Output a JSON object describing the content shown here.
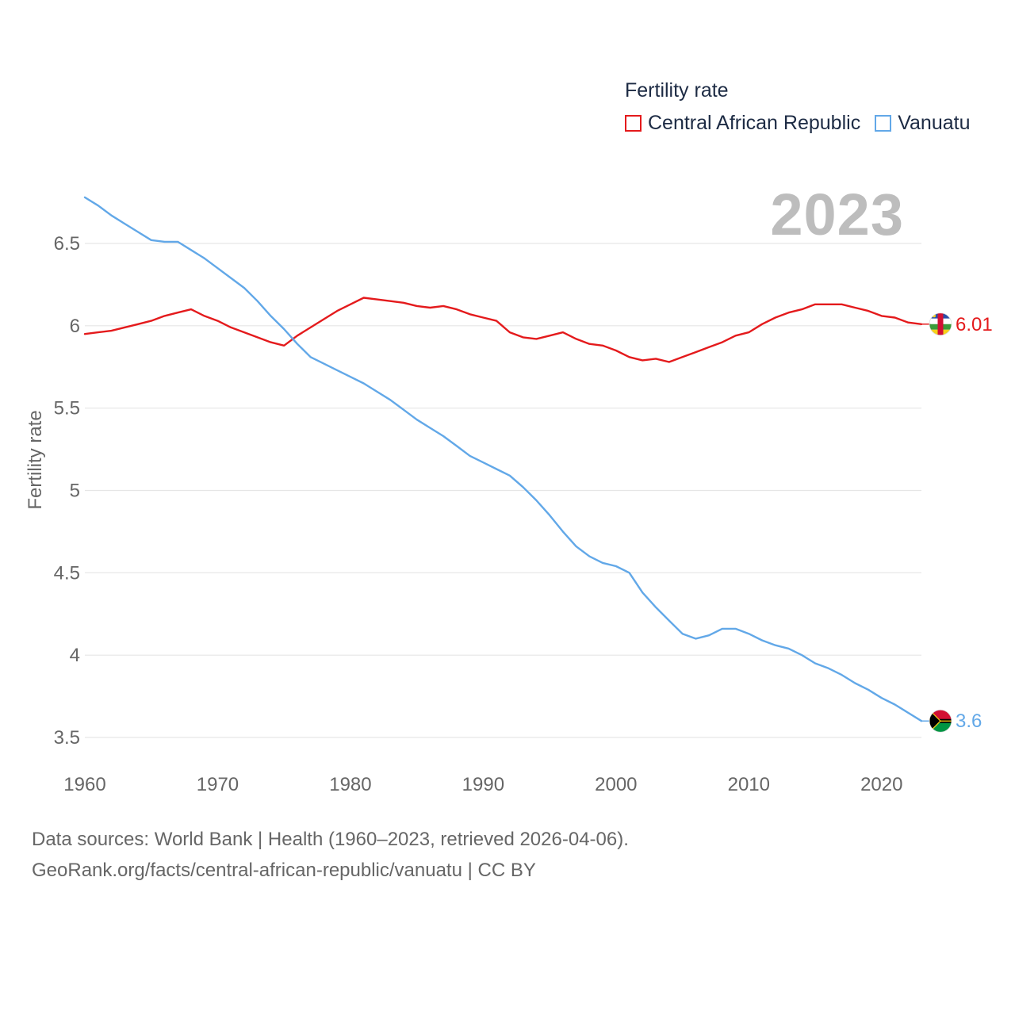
{
  "legend": {
    "title": "Fertility rate",
    "items": [
      {
        "label": "Central African Republic",
        "color": "#e41a1c"
      },
      {
        "label": "Vanuatu",
        "color": "#62a8e8"
      }
    ]
  },
  "year_label": "2023",
  "footer": {
    "line1": "Data sources: World Bank | Health (1960–2023, retrieved 2026-04-06).",
    "line2": "GeoRank.org/facts/central-african-republic/vanuatu | CC BY"
  },
  "chart_data": {
    "type": "line",
    "title": "",
    "xlabel": "",
    "ylabel": "Fertility rate",
    "xlim": [
      1960,
      2023
    ],
    "ylim": [
      3.5,
      6.8
    ],
    "x_ticks": [
      1960,
      1970,
      1980,
      1990,
      2000,
      2010,
      2020
    ],
    "x_tick_labels": [
      "1960",
      "1970",
      "1980",
      "1990",
      "2000",
      "2010",
      "2020"
    ],
    "y_ticks": [
      3.5,
      4,
      4.5,
      5,
      5.5,
      6,
      6.5
    ],
    "y_tick_labels": [
      "3.5",
      "4",
      "4.5",
      "5",
      "5.5",
      "6",
      "6.5"
    ],
    "grid": true,
    "legend_position": "top-right",
    "x": [
      1960,
      1961,
      1962,
      1963,
      1964,
      1965,
      1966,
      1967,
      1968,
      1969,
      1970,
      1971,
      1972,
      1973,
      1974,
      1975,
      1976,
      1977,
      1978,
      1979,
      1980,
      1981,
      1982,
      1983,
      1984,
      1985,
      1986,
      1987,
      1988,
      1989,
      1990,
      1991,
      1992,
      1993,
      1994,
      1995,
      1996,
      1997,
      1998,
      1999,
      2000,
      2001,
      2002,
      2003,
      2004,
      2005,
      2006,
      2007,
      2008,
      2009,
      2010,
      2011,
      2012,
      2013,
      2014,
      2015,
      2016,
      2017,
      2018,
      2019,
      2020,
      2021,
      2022,
      2023
    ],
    "series": [
      {
        "name": "Central African Republic",
        "color": "#e41a1c",
        "end_label": "6.01",
        "values": [
          5.95,
          5.96,
          5.97,
          5.99,
          6.01,
          6.03,
          6.06,
          6.08,
          6.1,
          6.06,
          6.03,
          5.99,
          5.96,
          5.93,
          5.9,
          5.88,
          5.94,
          5.99,
          6.04,
          6.09,
          6.13,
          6.17,
          6.16,
          6.15,
          6.14,
          6.12,
          6.11,
          6.12,
          6.1,
          6.07,
          6.05,
          6.03,
          5.96,
          5.93,
          5.92,
          5.94,
          5.96,
          5.92,
          5.89,
          5.88,
          5.85,
          5.81,
          5.79,
          5.8,
          5.78,
          5.81,
          5.84,
          5.87,
          5.9,
          5.94,
          5.96,
          6.01,
          6.05,
          6.08,
          6.1,
          6.13,
          6.13,
          6.13,
          6.11,
          6.09,
          6.06,
          6.05,
          6.02,
          6.01
        ]
      },
      {
        "name": "Vanuatu",
        "color": "#62a8e8",
        "end_label": "3.6",
        "values": [
          6.78,
          6.73,
          6.67,
          6.62,
          6.57,
          6.52,
          6.51,
          6.51,
          6.46,
          6.41,
          6.35,
          6.29,
          6.23,
          6.15,
          6.06,
          5.98,
          5.89,
          5.81,
          5.77,
          5.73,
          5.69,
          5.65,
          5.6,
          5.55,
          5.49,
          5.43,
          5.38,
          5.33,
          5.27,
          5.21,
          5.17,
          5.13,
          5.09,
          5.02,
          4.94,
          4.85,
          4.75,
          4.66,
          4.6,
          4.56,
          4.54,
          4.5,
          4.38,
          4.29,
          4.21,
          4.13,
          4.1,
          4.12,
          4.16,
          4.16,
          4.13,
          4.09,
          4.06,
          4.04,
          4.0,
          3.95,
          3.92,
          3.88,
          3.83,
          3.79,
          3.74,
          3.7,
          3.65,
          3.6
        ]
      }
    ]
  }
}
